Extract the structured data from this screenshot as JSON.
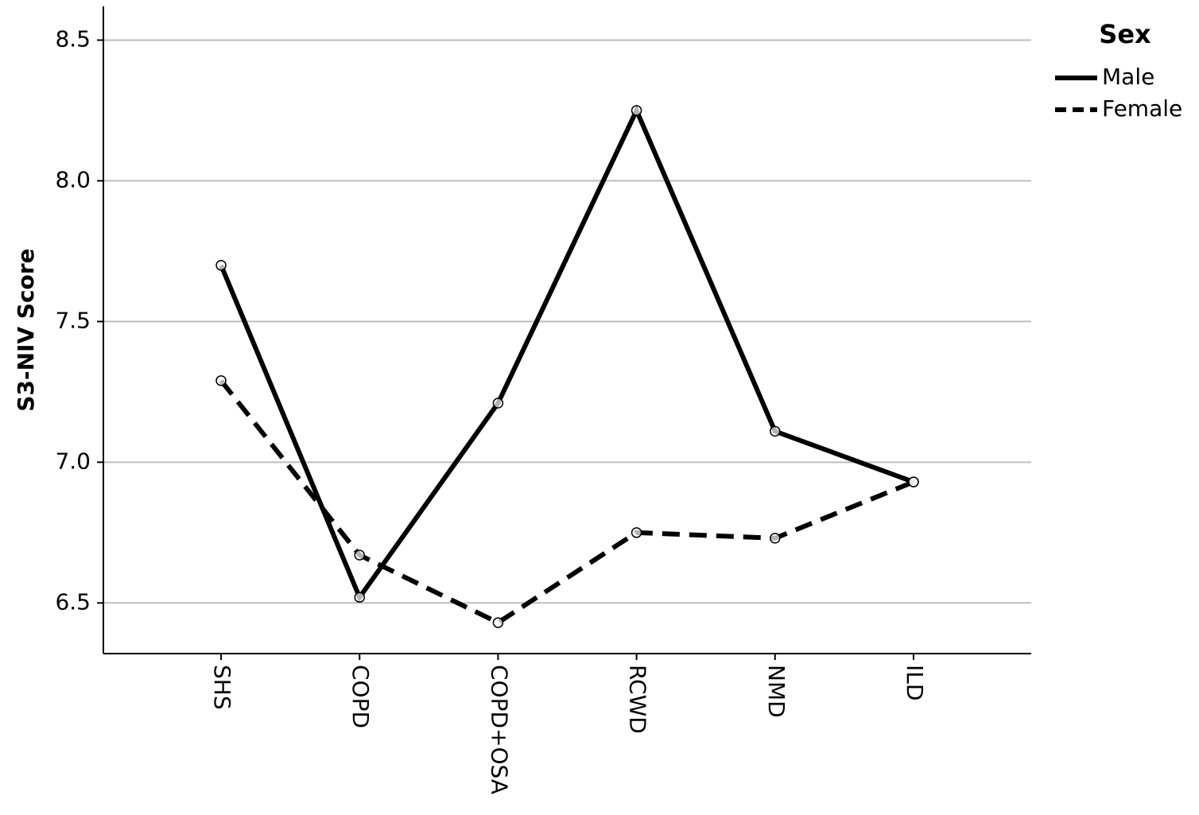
{
  "chart_data": {
    "type": "line",
    "y_label": "S3-NIV Score",
    "categories": [
      "SHS",
      "COPD",
      "COPD+OSA",
      "RCWD",
      "NMD",
      "ILD"
    ],
    "series": [
      {
        "name": "Male",
        "color": "#000000",
        "line_style": "solid",
        "values": [
          7.7,
          6.52,
          7.21,
          8.25,
          7.11,
          6.93
        ]
      },
      {
        "name": "Female",
        "color": "#000000",
        "line_style": "dashed",
        "values": [
          7.29,
          6.67,
          6.43,
          6.75,
          6.73,
          6.93
        ]
      }
    ],
    "ylim": [
      6.32,
      8.62
    ],
    "yticks": [
      {
        "value": 6.5,
        "label": "6.5"
      },
      {
        "value": 7.0,
        "label": "7.0"
      },
      {
        "value": 7.5,
        "label": "7.5"
      },
      {
        "value": 8.0,
        "label": "8.0"
      },
      {
        "value": 8.5,
        "label": "8.5"
      }
    ],
    "grid": true,
    "legend_title": "Sex",
    "legend_position": "right"
  }
}
